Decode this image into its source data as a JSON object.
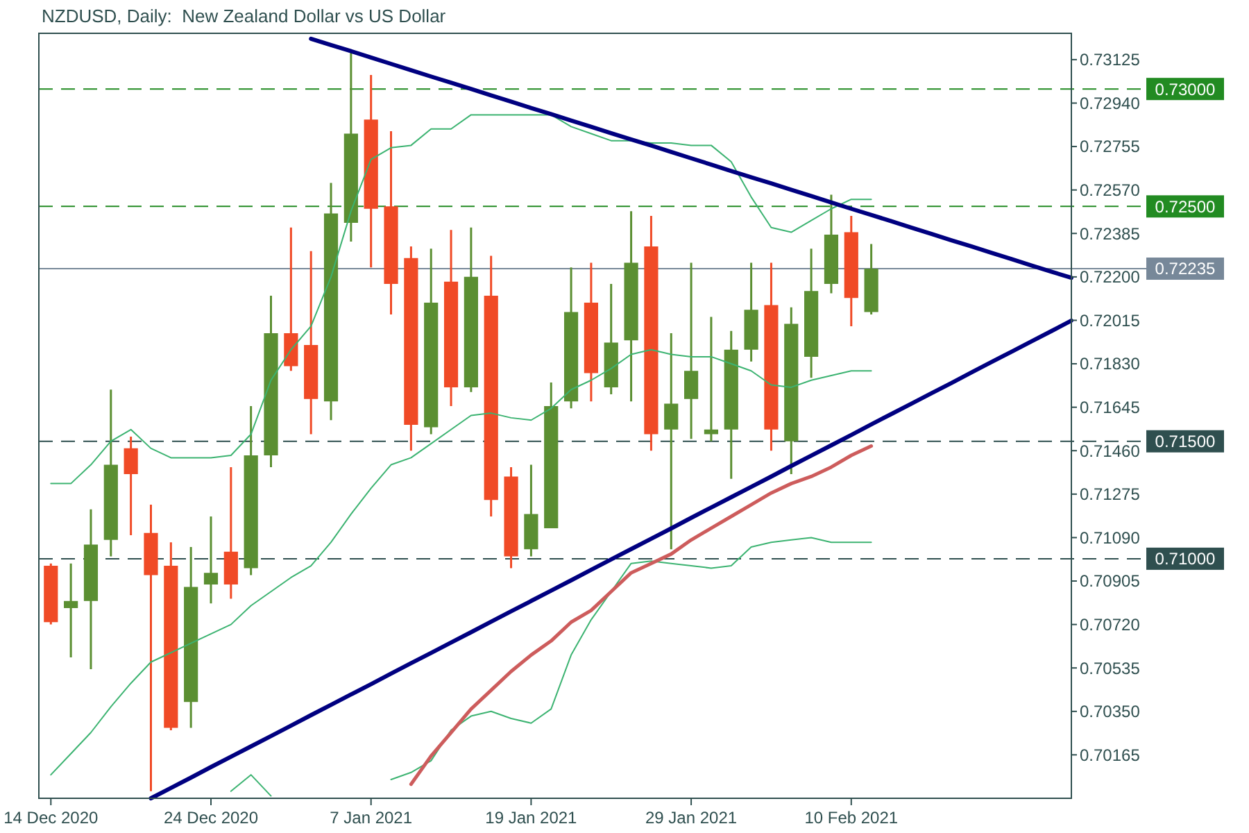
{
  "chart_data": {
    "type": "candlestick",
    "title": "NZDUSD, Daily:  New Zealand Dollar vs US Dollar",
    "categories": [
      "14 Dec 2020",
      null,
      null,
      null,
      null,
      null,
      null,
      null,
      "24 Dec 2020",
      null,
      null,
      null,
      null,
      null,
      null,
      null,
      "7 Jan 2021",
      null,
      null,
      null,
      null,
      null,
      null,
      null,
      "19 Jan 2021",
      null,
      null,
      null,
      null,
      null,
      null,
      null,
      "29 Jan 2021",
      null,
      null,
      null,
      null,
      null,
      null,
      null,
      "10 Feb 2021",
      null,
      null,
      null,
      null,
      null,
      null,
      null,
      null,
      null,
      null,
      null
    ],
    "ylim": [
      0.6998,
      0.73237
    ],
    "yticks": [
      0.73125,
      {
        "value": 0.7294,
        "label": "0.72940"
      },
      0.72755,
      {
        "value": 0.7257,
        "label": "0.72570"
      },
      0.72385,
      {
        "value": 0.722,
        "label": "0.72200"
      },
      0.72015,
      {
        "value": 0.7183,
        "label": "0.71830"
      },
      0.71645,
      {
        "value": 0.7146,
        "label": "0.71460"
      },
      0.71275,
      {
        "value": 0.7109,
        "label": "0.71090"
      },
      0.70905,
      {
        "value": 0.7072,
        "label": "0.70720"
      },
      0.70535,
      {
        "value": 0.7035,
        "label": "0.70350"
      },
      0.70165
    ],
    "ohlc": [
      [
        0.7097,
        0.7098,
        0.7072,
        0.7073
      ],
      [
        0.7079,
        0.7098,
        0.7058,
        0.7082
      ],
      [
        0.7082,
        0.7121,
        0.7053,
        0.7106
      ],
      [
        0.7108,
        0.7172,
        0.7101,
        0.714
      ],
      [
        0.7147,
        0.7152,
        0.711,
        0.7136
      ],
      [
        0.7111,
        0.7123,
        0.7001,
        0.7093
      ],
      [
        0.7097,
        0.7107,
        0.7027,
        0.7028
      ],
      [
        0.7039,
        0.7105,
        0.7028,
        0.7088
      ],
      [
        0.7089,
        0.7118,
        0.7081,
        0.7094
      ],
      [
        0.7103,
        0.7139,
        0.7083,
        0.7089
      ],
      [
        0.7096,
        0.7165,
        0.7093,
        0.7144
      ],
      [
        0.7144,
        0.7212,
        0.7139,
        0.7196
      ],
      [
        0.7196,
        0.7241,
        0.718,
        0.7182
      ],
      [
        0.7191,
        0.7231,
        0.7153,
        0.7168
      ],
      [
        0.7167,
        0.726,
        0.7159,
        0.7247
      ],
      [
        0.7243,
        0.7316,
        0.7235,
        0.7281
      ],
      [
        0.7287,
        0.7306,
        0.7224,
        0.7249
      ],
      [
        0.725,
        0.7282,
        0.7204,
        0.7217
      ],
      [
        0.7228,
        0.7233,
        0.7146,
        0.7157
      ],
      [
        0.7156,
        0.7232,
        0.7153,
        0.7209
      ],
      [
        0.7218,
        0.724,
        0.7165,
        0.7173
      ],
      [
        0.7173,
        0.7241,
        0.7171,
        0.722
      ],
      [
        0.7212,
        0.7229,
        0.7118,
        0.7125
      ],
      [
        0.7135,
        0.7139,
        0.7096,
        0.7101
      ],
      [
        0.7104,
        0.714,
        0.7101,
        0.7119
      ],
      [
        0.7113,
        0.7175,
        0.7113,
        0.7165
      ],
      [
        0.7167,
        0.7224,
        0.7164,
        0.7205
      ],
      [
        0.7209,
        0.7226,
        0.7167,
        0.7179
      ],
      [
        0.7173,
        0.7217,
        0.717,
        0.7192
      ],
      [
        0.7193,
        0.7248,
        0.7167,
        0.7226
      ],
      [
        0.7233,
        0.7246,
        0.7146,
        0.7153
      ],
      [
        0.7155,
        0.7196,
        0.7104,
        0.7166
      ],
      [
        0.7168,
        0.7226,
        0.7151,
        0.718
      ],
      [
        0.7153,
        0.7203,
        0.715,
        0.7155
      ],
      [
        0.7155,
        0.7197,
        0.7134,
        0.7189
      ],
      [
        0.7189,
        0.7226,
        0.7184,
        0.7206
      ],
      [
        0.7208,
        0.7226,
        0.7146,
        0.7155
      ],
      [
        0.715,
        0.7207,
        0.7136,
        0.72
      ],
      [
        0.7186,
        0.7232,
        0.7177,
        0.7214
      ],
      [
        0.7217,
        0.7255,
        0.7213,
        0.7238
      ],
      [
        0.7239,
        0.7246,
        0.7199,
        0.7211
      ],
      [
        0.7205,
        0.7234,
        0.7204,
        0.72235
      ],
      null,
      null,
      null,
      null,
      null,
      null,
      null,
      null,
      null,
      null
    ],
    "colors": [
      "#f04a26",
      "#5b8f32",
      "#5b8f32",
      "#5b8f32",
      "#f04a26",
      "#f04a26",
      "#f04a26",
      "#5b8f32",
      "#5b8f32",
      "#f04a26",
      "#5b8f32",
      "#5b8f32",
      "#f04a26",
      "#f04a26",
      "#5b8f32",
      "#5b8f32",
      "#f04a26",
      "#f04a26",
      "#f04a26",
      "#5b8f32",
      "#f04a26",
      "#5b8f32",
      "#f04a26",
      "#f04a26",
      "#5b8f32",
      "#5b8f32",
      "#5b8f32",
      "#f04a26",
      "#5b8f32",
      "#5b8f32",
      "#f04a26",
      "#5b8f32",
      "#5b8f32",
      "#5b8f32",
      "#5b8f32",
      "#5b8f32",
      "#f04a26",
      "#5b8f32",
      "#5b8f32",
      "#5b8f32",
      "#f04a26",
      "#5b8f32",
      null,
      null,
      null,
      null,
      null,
      null,
      null,
      null,
      null,
      null
    ],
    "series": [
      {
        "type": "line",
        "color": "#3cb371",
        "values": [
          0.7132,
          0.7132,
          0.714,
          0.715,
          0.7155,
          0.7147,
          0.7143,
          0.7143,
          0.7143,
          0.7144,
          0.7153,
          0.7176,
          0.7189,
          0.7199,
          0.722,
          0.7248,
          0.727,
          0.7275,
          0.7276,
          0.7283,
          0.7283,
          0.7289,
          0.7289,
          0.7289,
          0.7289,
          0.7289,
          0.7284,
          0.7281,
          0.7278,
          0.7278,
          0.7277,
          0.7277,
          0.7276,
          0.7276,
          0.7269,
          0.7254,
          0.7241,
          0.7239,
          0.7244,
          0.7249,
          0.7253,
          0.7253,
          null,
          null,
          null,
          null,
          null,
          null,
          null,
          null,
          null,
          null
        ]
      },
      {
        "type": "line",
        "color": "#3cb371",
        "values": [
          0.7008,
          0.7017,
          0.7026,
          0.7037,
          0.7047,
          0.7056,
          0.706,
          0.7064,
          0.7068,
          0.7072,
          0.708,
          0.7086,
          0.7092,
          0.7097,
          0.7107,
          0.7119,
          0.713,
          0.714,
          0.7143,
          0.7149,
          0.7155,
          0.7161,
          0.7162,
          0.716,
          0.7159,
          0.7164,
          0.7172,
          0.7176,
          0.7181,
          0.7187,
          0.7189,
          0.7187,
          0.7186,
          0.7186,
          0.7183,
          0.718,
          0.7174,
          0.7173,
          0.7176,
          0.7178,
          0.718,
          0.718,
          null,
          null,
          null,
          null,
          null,
          null,
          null,
          null,
          null,
          null
        ]
      },
      {
        "type": "line",
        "color": "#3cb371",
        "values": [
          null,
          null,
          null,
          null,
          null,
          null,
          null,
          null,
          null,
          0.7001,
          0.7008,
          0.6999,
          null,
          null,
          null,
          null,
          null,
          0.7006,
          0.7009,
          0.7014,
          0.7027,
          0.7033,
          0.7035,
          0.7032,
          0.703,
          0.7036,
          0.7059,
          0.7074,
          0.7086,
          0.7098,
          0.7099,
          0.7098,
          0.7097,
          0.7096,
          0.7097,
          0.7105,
          0.7107,
          0.7108,
          0.7109,
          0.7107,
          0.7107,
          0.7107,
          null,
          null,
          null,
          null,
          null,
          null,
          null,
          null,
          null,
          null
        ]
      },
      {
        "type": "line",
        "color": "#cd5c5c",
        "values": [
          null,
          null,
          null,
          null,
          null,
          null,
          null,
          null,
          null,
          null,
          null,
          null,
          null,
          null,
          null,
          null,
          null,
          null,
          0.7004,
          0.7016,
          0.7026,
          0.7036,
          0.7044,
          0.7052,
          0.7059,
          0.7065,
          0.7073,
          0.7078,
          0.7086,
          0.7094,
          0.7098,
          0.7102,
          0.7108,
          0.7113,
          0.7118,
          0.7123,
          0.7128,
          0.7132,
          0.7135,
          0.7139,
          0.7144,
          0.7148,
          null,
          null,
          null,
          null,
          null,
          null,
          null,
          null,
          null,
          null
        ]
      },
      {
        "type": "line",
        "color": "#000080",
        "values": [
          null,
          null,
          null,
          null,
          null,
          null,
          null,
          null,
          null,
          null,
          null,
          null,
          null,
          0.73214,
          0.73187,
          0.73161,
          0.73134,
          0.73107,
          0.7308,
          0.73053,
          0.73027,
          0.73,
          0.72973,
          0.72946,
          0.72919,
          0.72893,
          0.72866,
          0.72839,
          0.72812,
          0.72785,
          0.72759,
          0.72732,
          0.72705,
          0.72678,
          0.72651,
          0.72624,
          0.72598,
          0.72571,
          0.72544,
          0.72517,
          0.7249,
          0.72464,
          0.72437,
          0.7241,
          0.72383,
          0.72356,
          0.7233,
          0.72303,
          0.72276,
          0.72249,
          0.72222,
          0.72196
        ]
      },
      {
        "type": "line",
        "color": "#000080",
        "values": [
          null,
          null,
          null,
          null,
          null,
          0.6998,
          0.70024,
          0.70068,
          0.70113,
          0.70157,
          0.70201,
          0.70245,
          0.70289,
          0.70334,
          0.70378,
          0.70422,
          0.70466,
          0.70511,
          0.70555,
          0.70599,
          0.70643,
          0.70687,
          0.70732,
          0.70776,
          0.7082,
          0.70864,
          0.70908,
          0.70953,
          0.70997,
          0.71041,
          0.71085,
          0.71129,
          0.71174,
          0.71218,
          0.71262,
          0.71306,
          0.7135,
          0.71395,
          0.71439,
          0.71483,
          0.71527,
          0.71572,
          0.71616,
          0.7166,
          0.71704,
          0.71748,
          0.71793,
          0.71837,
          0.71881,
          0.71925,
          0.71969,
          0.72014
        ]
      }
    ],
    "ref_lines": [
      {
        "axis": "y",
        "value": 0.73,
        "label": "0.73000",
        "color": "#228b22",
        "line_style": "dashed"
      },
      {
        "axis": "y",
        "value": 0.725,
        "label": "0.72500",
        "color": "#228b22",
        "line_style": "dashed"
      },
      {
        "axis": "y",
        "value": 0.72235,
        "label": "0.72235",
        "color": "#778899",
        "line_style": "solid"
      },
      {
        "axis": "y",
        "value": 0.715,
        "label": "0.71500",
        "color": "#2f4f4f",
        "line_style": "dashed"
      },
      {
        "axis": "y",
        "value": 0.71,
        "label": "0.71000",
        "color": "#2f4f4f",
        "line_style": "dashed"
      }
    ]
  }
}
